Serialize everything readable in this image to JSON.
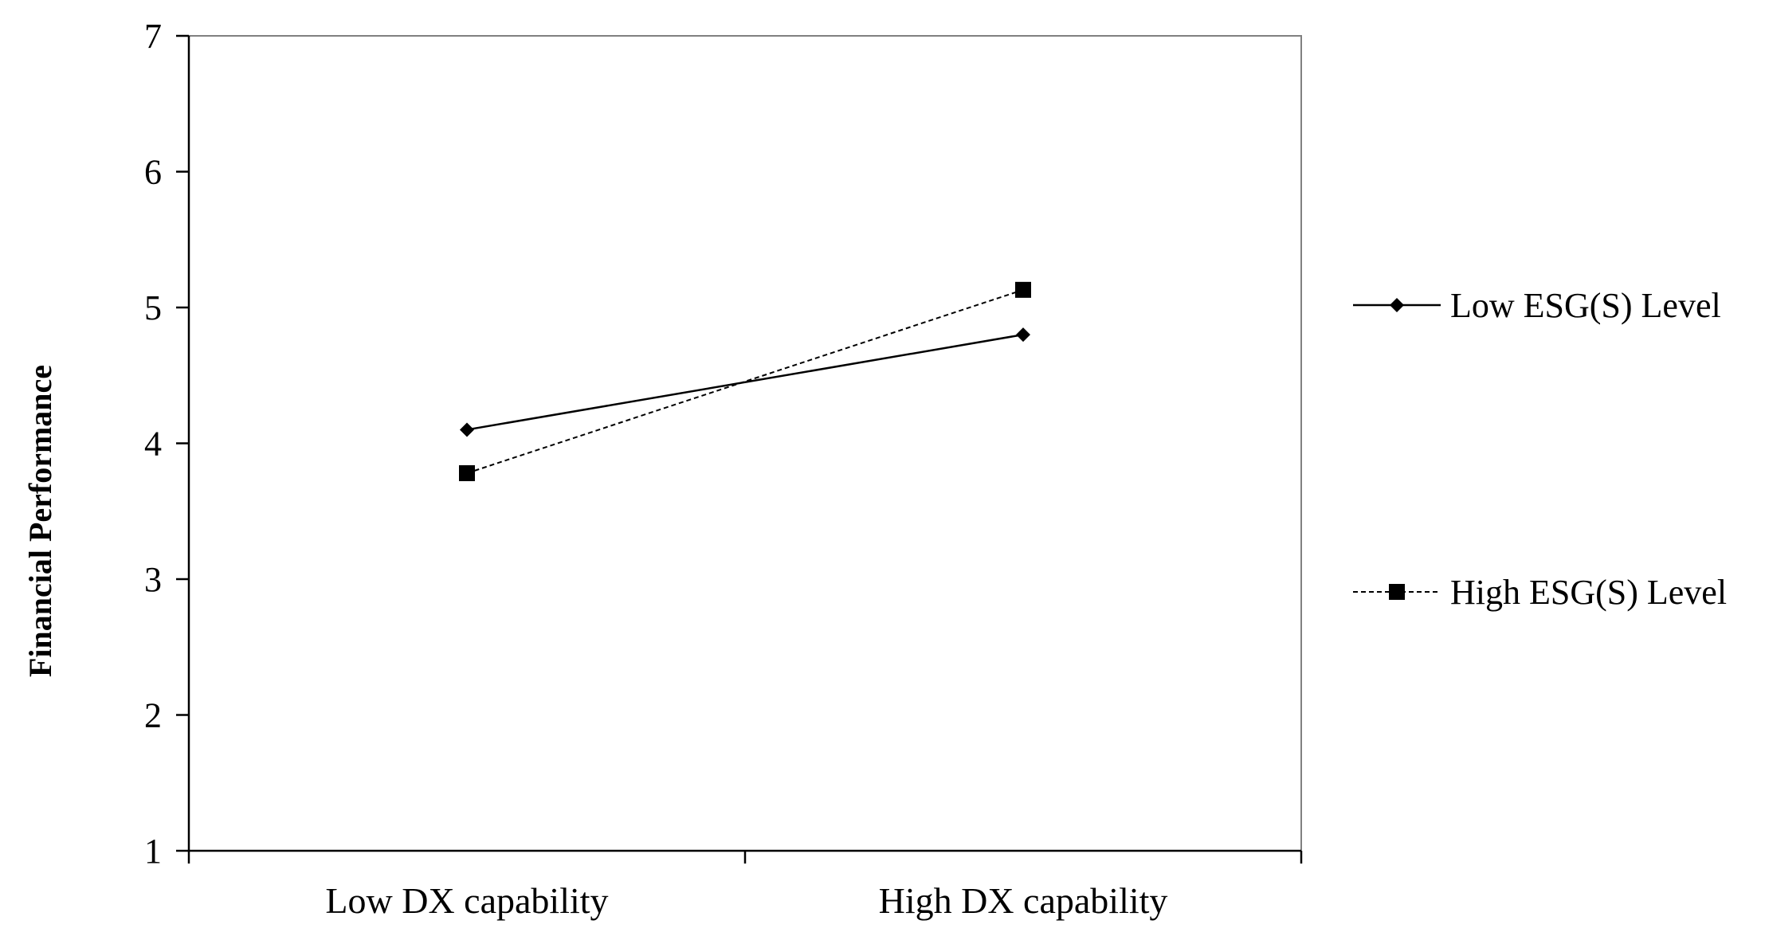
{
  "chart_data": {
    "type": "line",
    "title": "",
    "xlabel": "",
    "ylabel": "Financial   Performance",
    "ylim": [
      1,
      7
    ],
    "yticks": [
      1,
      2,
      3,
      4,
      5,
      6,
      7
    ],
    "categories": [
      "Low DX capability",
      "High DX capability"
    ],
    "series": [
      {
        "name": "Low ESG(S) Level",
        "values": [
          4.1,
          4.8
        ],
        "line_style": "solid",
        "marker": "diamond",
        "color": "#000000"
      },
      {
        "name": "High ESG(S) Level",
        "values": [
          3.78,
          5.13
        ],
        "line_style": "dashed",
        "marker": "square",
        "color": "#000000"
      }
    ],
    "legend_position": "right",
    "grid": false
  }
}
